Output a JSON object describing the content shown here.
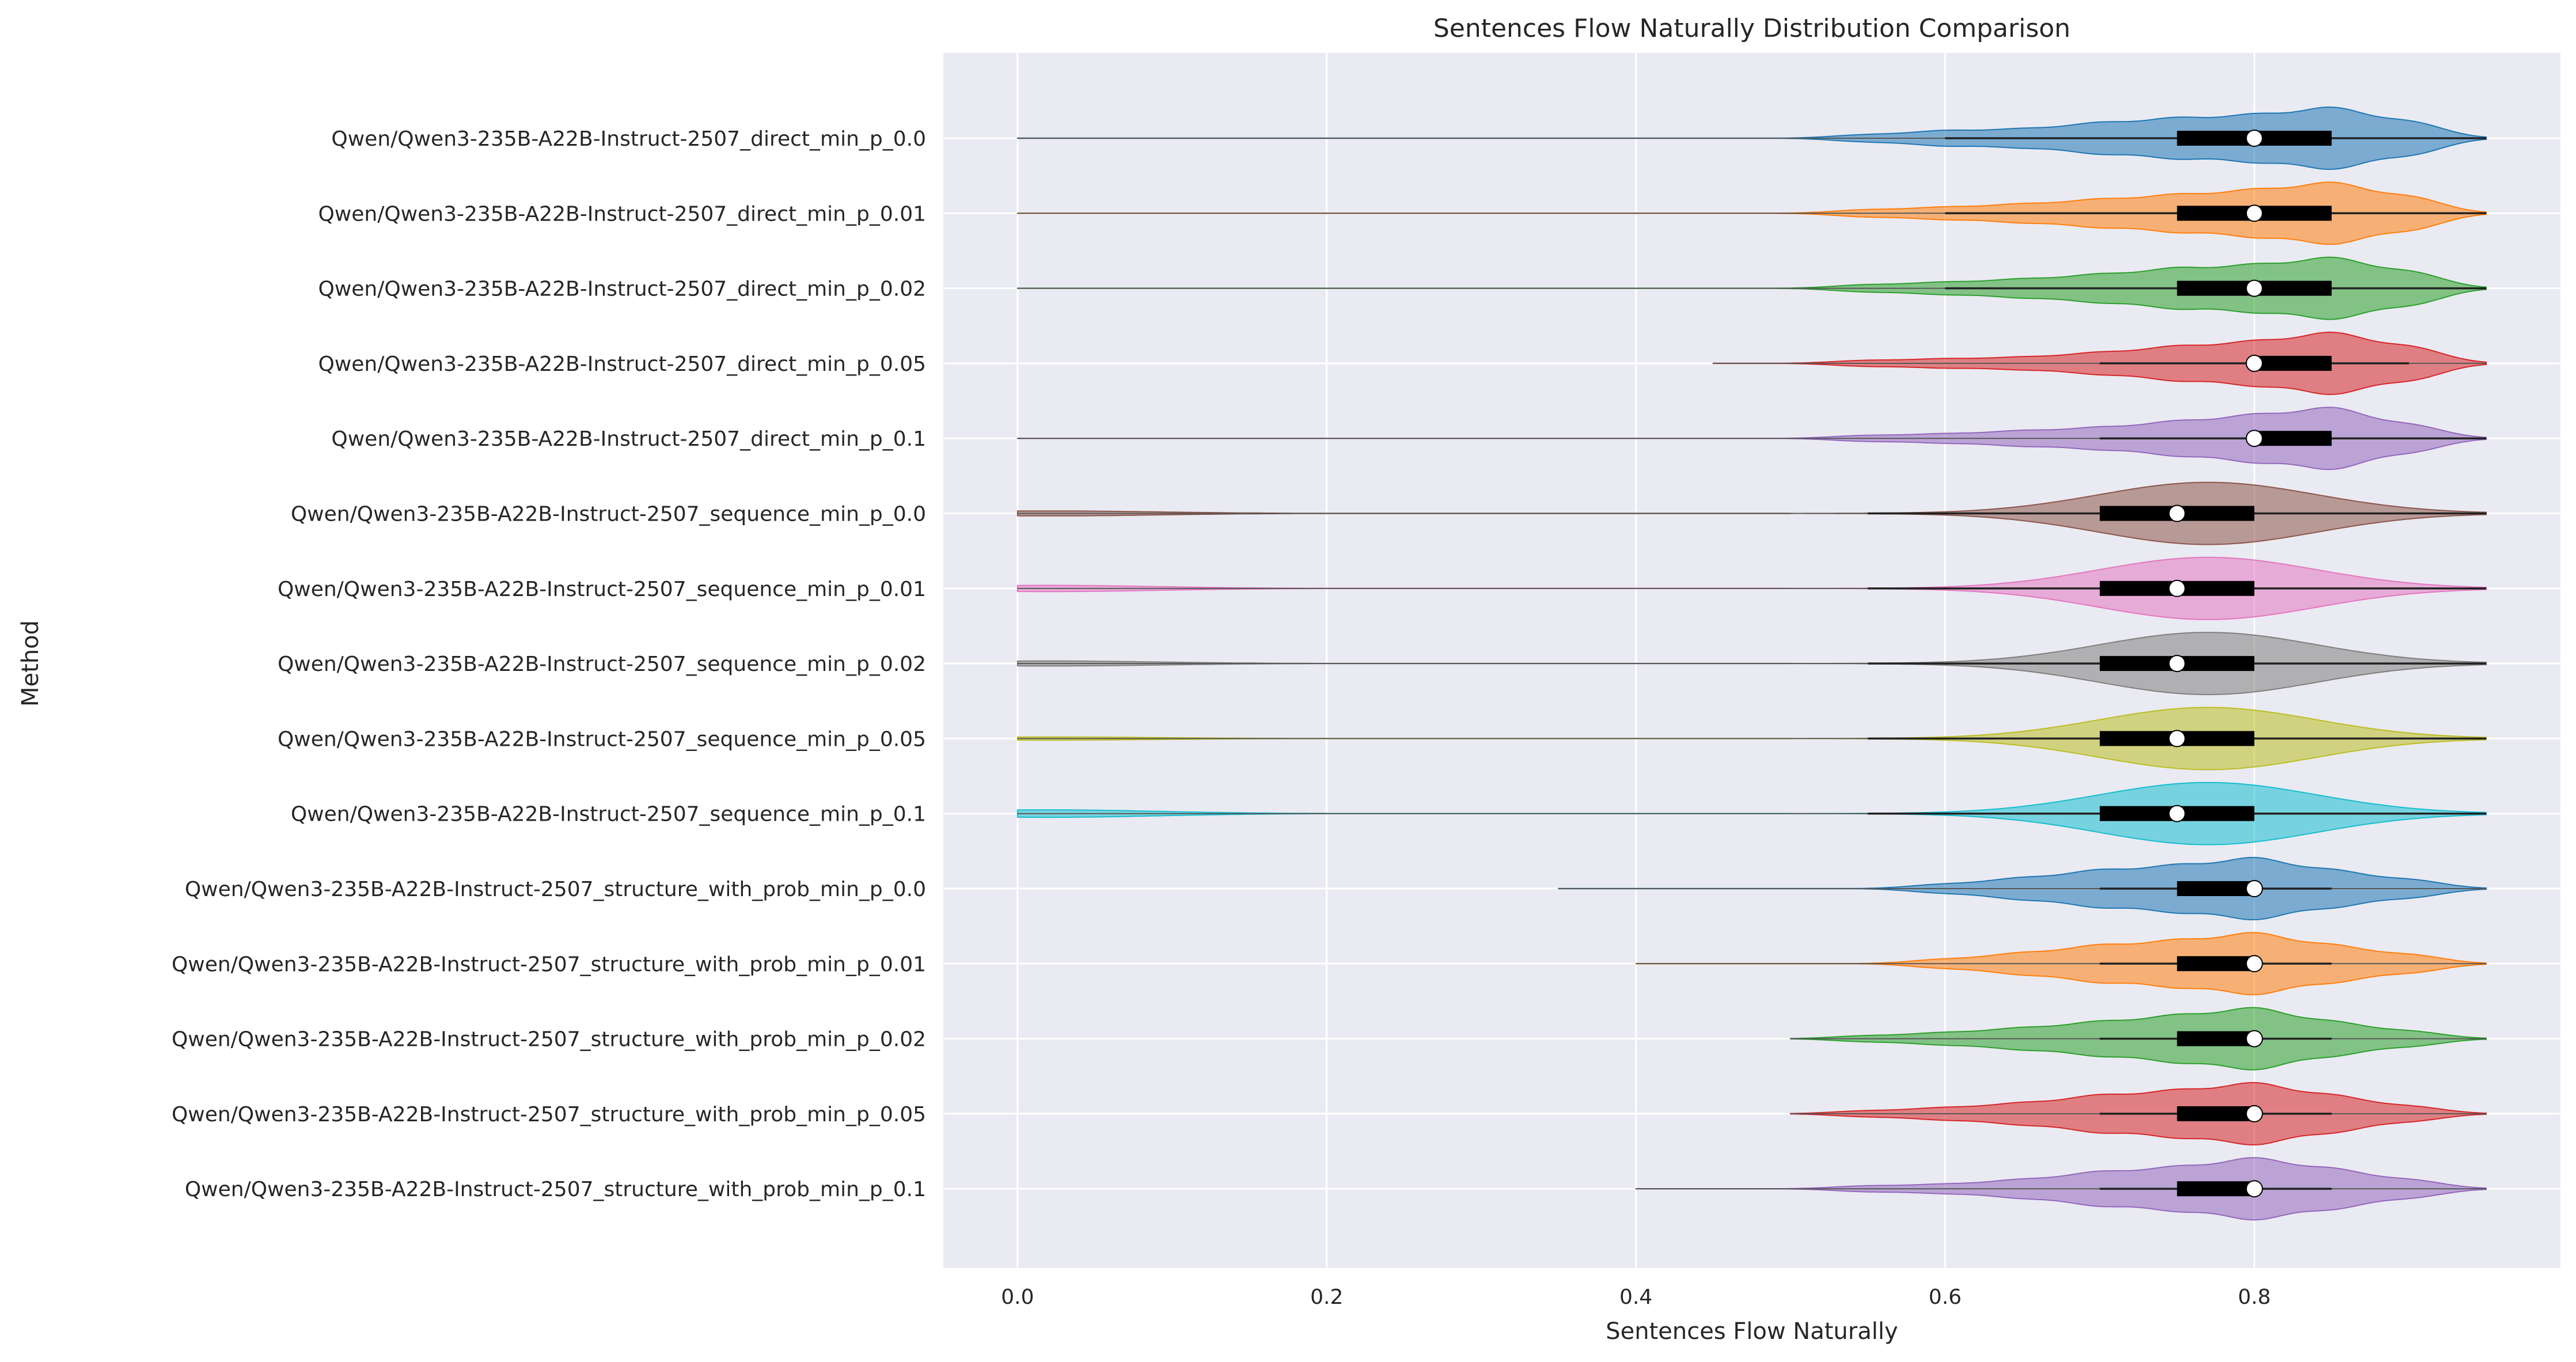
{
  "chart_data": {
    "type": "violin",
    "orientation": "horizontal",
    "title": "Sentences Flow Naturally Distribution Comparison",
    "xlabel": "Sentences Flow Naturally",
    "ylabel": "Method",
    "xlim": [
      -0.048,
      0.998
    ],
    "x_ticks": [
      0.0,
      0.2,
      0.4,
      0.6,
      0.8
    ],
    "x_tick_labels": [
      "0.0",
      "0.2",
      "0.4",
      "0.6",
      "0.8"
    ],
    "grid": true,
    "palette": [
      "#1f77b4",
      "#ff7f0e",
      "#2ca02c",
      "#d62728",
      "#9467bd",
      "#8c564b",
      "#e377c2",
      "#7f7f7f",
      "#bcbd22",
      "#17becf"
    ],
    "background": "#eaeaf2",
    "series": [
      {
        "name": "Qwen/Qwen3-235B-A22B-Instruct-2507_direct_min_p_0.0",
        "min": 0.0,
        "q1": 0.75,
        "median": 0.8,
        "q3": 0.85,
        "max": 0.95,
        "whisker_low": 0.6,
        "whisker_high": 0.95,
        "modes": [
          [
            0.55,
            0.12
          ],
          [
            0.6,
            0.25
          ],
          [
            0.65,
            0.3
          ],
          [
            0.7,
            0.5
          ],
          [
            0.75,
            0.65
          ],
          [
            0.8,
            0.75
          ],
          [
            0.85,
            1.0
          ],
          [
            0.9,
            0.55
          ]
        ]
      },
      {
        "name": "Qwen/Qwen3-235B-A22B-Instruct-2507_direct_min_p_0.01",
        "min": 0.0,
        "q1": 0.75,
        "median": 0.8,
        "q3": 0.85,
        "max": 0.95,
        "whisker_low": 0.6,
        "whisker_high": 0.95,
        "modes": [
          [
            0.55,
            0.12
          ],
          [
            0.6,
            0.2
          ],
          [
            0.65,
            0.3
          ],
          [
            0.7,
            0.45
          ],
          [
            0.75,
            0.6
          ],
          [
            0.8,
            0.75
          ],
          [
            0.85,
            1.0
          ],
          [
            0.9,
            0.55
          ]
        ]
      },
      {
        "name": "Qwen/Qwen3-235B-A22B-Instruct-2507_direct_min_p_0.02",
        "min": 0.0,
        "q1": 0.75,
        "median": 0.8,
        "q3": 0.85,
        "max": 0.95,
        "whisker_low": 0.6,
        "whisker_high": 0.95,
        "modes": [
          [
            0.55,
            0.12
          ],
          [
            0.6,
            0.2
          ],
          [
            0.65,
            0.3
          ],
          [
            0.7,
            0.45
          ],
          [
            0.75,
            0.65
          ],
          [
            0.8,
            0.75
          ],
          [
            0.85,
            1.0
          ],
          [
            0.9,
            0.55
          ]
        ]
      },
      {
        "name": "Qwen/Qwen3-235B-A22B-Instruct-2507_direct_min_p_0.05",
        "min": 0.45,
        "q1": 0.8,
        "median": 0.8,
        "q3": 0.85,
        "max": 0.95,
        "whisker_low": 0.7,
        "whisker_high": 0.9,
        "modes": [
          [
            0.55,
            0.1
          ],
          [
            0.6,
            0.15
          ],
          [
            0.65,
            0.2
          ],
          [
            0.7,
            0.35
          ],
          [
            0.75,
            0.55
          ],
          [
            0.8,
            0.7
          ],
          [
            0.85,
            1.0
          ],
          [
            0.9,
            0.55
          ]
        ]
      },
      {
        "name": "Qwen/Qwen3-235B-A22B-Instruct-2507_direct_min_p_0.1",
        "min": 0.0,
        "q1": 0.8,
        "median": 0.8,
        "q3": 0.85,
        "max": 0.95,
        "whisker_low": 0.7,
        "whisker_high": 0.95,
        "modes": [
          [
            0.55,
            0.1
          ],
          [
            0.6,
            0.15
          ],
          [
            0.65,
            0.25
          ],
          [
            0.7,
            0.35
          ],
          [
            0.75,
            0.55
          ],
          [
            0.8,
            0.75
          ],
          [
            0.85,
            1.0
          ],
          [
            0.9,
            0.45
          ]
        ]
      },
      {
        "name": "Qwen/Qwen3-235B-A22B-Instruct-2507_sequence_min_p_0.0",
        "min": 0.0,
        "q1": 0.7,
        "median": 0.75,
        "q3": 0.8,
        "max": 0.95,
        "whisker_low": 0.55,
        "whisker_high": 0.95,
        "modes": [
          [
            0.02,
            0.08
          ],
          [
            0.77,
            1.0
          ]
        ],
        "sigma": 0.07
      },
      {
        "name": "Qwen/Qwen3-235B-A22B-Instruct-2507_sequence_min_p_0.01",
        "min": 0.0,
        "q1": 0.7,
        "median": 0.75,
        "q3": 0.8,
        "max": 0.95,
        "whisker_low": 0.55,
        "whisker_high": 0.95,
        "modes": [
          [
            0.02,
            0.1
          ],
          [
            0.77,
            1.0
          ]
        ],
        "sigma": 0.07
      },
      {
        "name": "Qwen/Qwen3-235B-A22B-Instruct-2507_sequence_min_p_0.02",
        "min": 0.0,
        "q1": 0.7,
        "median": 0.75,
        "q3": 0.8,
        "max": 0.95,
        "whisker_low": 0.55,
        "whisker_high": 0.95,
        "modes": [
          [
            0.02,
            0.08
          ],
          [
            0.77,
            1.0
          ]
        ],
        "sigma": 0.07
      },
      {
        "name": "Qwen/Qwen3-235B-A22B-Instruct-2507_sequence_min_p_0.05",
        "min": 0.0,
        "q1": 0.7,
        "median": 0.75,
        "q3": 0.8,
        "max": 0.95,
        "whisker_low": 0.55,
        "whisker_high": 0.95,
        "modes": [
          [
            0.02,
            0.05
          ],
          [
            0.77,
            1.0
          ]
        ],
        "sigma": 0.07
      },
      {
        "name": "Qwen/Qwen3-235B-A22B-Instruct-2507_sequence_min_p_0.1",
        "min": 0.0,
        "q1": 0.7,
        "median": 0.75,
        "q3": 0.8,
        "max": 0.95,
        "whisker_low": 0.55,
        "whisker_high": 0.95,
        "modes": [
          [
            0.02,
            0.12
          ],
          [
            0.77,
            1.0
          ]
        ],
        "sigma": 0.07
      },
      {
        "name": "Qwen/Qwen3-235B-A22B-Instruct-2507_structure_with_prob_min_p_0.0",
        "min": 0.35,
        "q1": 0.75,
        "median": 0.8,
        "q3": 0.8,
        "max": 0.95,
        "whisker_low": 0.7,
        "whisker_high": 0.85,
        "modes": [
          [
            0.6,
            0.15
          ],
          [
            0.65,
            0.35
          ],
          [
            0.7,
            0.6
          ],
          [
            0.75,
            0.75
          ],
          [
            0.8,
            1.0
          ],
          [
            0.85,
            0.6
          ],
          [
            0.9,
            0.3
          ]
        ]
      },
      {
        "name": "Qwen/Qwen3-235B-A22B-Instruct-2507_structure_with_prob_min_p_0.01",
        "min": 0.4,
        "q1": 0.75,
        "median": 0.8,
        "q3": 0.8,
        "max": 0.95,
        "whisker_low": 0.7,
        "whisker_high": 0.85,
        "modes": [
          [
            0.6,
            0.15
          ],
          [
            0.65,
            0.35
          ],
          [
            0.7,
            0.6
          ],
          [
            0.75,
            0.75
          ],
          [
            0.8,
            1.0
          ],
          [
            0.85,
            0.6
          ],
          [
            0.9,
            0.3
          ]
        ]
      },
      {
        "name": "Qwen/Qwen3-235B-A22B-Instruct-2507_structure_with_prob_min_p_0.02",
        "min": 0.5,
        "q1": 0.75,
        "median": 0.8,
        "q3": 0.8,
        "max": 0.95,
        "whisker_low": 0.7,
        "whisker_high": 0.85,
        "modes": [
          [
            0.55,
            0.1
          ],
          [
            0.6,
            0.2
          ],
          [
            0.65,
            0.35
          ],
          [
            0.7,
            0.55
          ],
          [
            0.75,
            0.75
          ],
          [
            0.8,
            1.0
          ],
          [
            0.85,
            0.55
          ],
          [
            0.9,
            0.25
          ]
        ]
      },
      {
        "name": "Qwen/Qwen3-235B-A22B-Instruct-2507_structure_with_prob_min_p_0.05",
        "min": 0.5,
        "q1": 0.75,
        "median": 0.8,
        "q3": 0.8,
        "max": 0.95,
        "whisker_low": 0.7,
        "whisker_high": 0.85,
        "modes": [
          [
            0.55,
            0.1
          ],
          [
            0.6,
            0.2
          ],
          [
            0.65,
            0.35
          ],
          [
            0.7,
            0.6
          ],
          [
            0.75,
            0.75
          ],
          [
            0.8,
            1.0
          ],
          [
            0.85,
            0.6
          ],
          [
            0.9,
            0.25
          ]
        ]
      },
      {
        "name": "Qwen/Qwen3-235B-A22B-Instruct-2507_structure_with_prob_min_p_0.1",
        "min": 0.4,
        "q1": 0.75,
        "median": 0.8,
        "q3": 0.8,
        "max": 0.95,
        "whisker_low": 0.7,
        "whisker_high": 0.85,
        "modes": [
          [
            0.55,
            0.1
          ],
          [
            0.6,
            0.15
          ],
          [
            0.65,
            0.3
          ],
          [
            0.7,
            0.55
          ],
          [
            0.75,
            0.7
          ],
          [
            0.8,
            1.0
          ],
          [
            0.85,
            0.65
          ],
          [
            0.9,
            0.3
          ]
        ]
      }
    ]
  }
}
